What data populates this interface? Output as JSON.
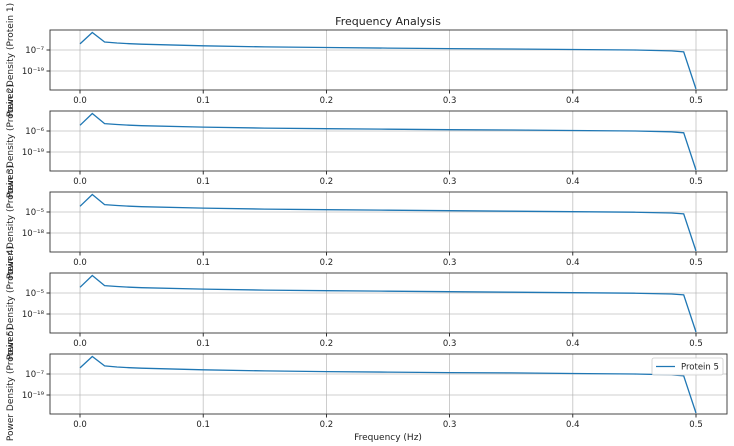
{
  "figure": {
    "title": "Frequency Analysis",
    "xlabel": "Frequency (Hz)"
  },
  "chart_data": {
    "type": "line",
    "title": "Frequency Analysis",
    "xlabel": "Frequency (Hz)",
    "x_ticks": [
      "0.0",
      "0.1",
      "0.2",
      "0.3",
      "0.4",
      "0.5"
    ],
    "xlim": [
      -0.025,
      0.525
    ],
    "grid": true,
    "yscale": "log",
    "legend": {
      "entries": [
        "Protein 5"
      ],
      "position": "upper right",
      "panel": 5
    },
    "line_color": "#1f77b4",
    "x": [
      0.0,
      0.01,
      0.02,
      0.03,
      0.04,
      0.05,
      0.1,
      0.15,
      0.2,
      0.25,
      0.3,
      0.35,
      0.4,
      0.45,
      0.48,
      0.49,
      0.5
    ],
    "panels": [
      {
        "ylabel": "Power Density (Protein 1)",
        "y_ticks": [
          "10⁻⁷",
          "10⁻¹⁹"
        ],
        "tick_exponents": [
          -7,
          -19
        ],
        "y_log_values": [
          -3.5,
          -1.5,
          -2.4,
          -3.0,
          -3.4,
          -3.7,
          -4.6,
          -5.2,
          -5.6,
          -5.9,
          -6.2,
          -6.4,
          -6.7,
          -7.0,
          -7.5,
          -8.1,
          -29
        ]
      },
      {
        "ylabel": "Power Density (Protein 2)",
        "y_ticks": [
          "10⁻⁶",
          "10⁻¹⁹"
        ],
        "tick_exponents": [
          -6,
          -19
        ],
        "y_log_values": [
          -2.5,
          -0.4,
          -1.4,
          -2.0,
          -2.4,
          -2.7,
          -3.6,
          -4.2,
          -4.6,
          -4.9,
          -5.2,
          -5.4,
          -5.7,
          -6.0,
          -6.5,
          -7.1,
          -31
        ]
      },
      {
        "ylabel": "Power Density (Protein 3)",
        "y_ticks": [
          "10⁻⁵",
          "10⁻¹⁸"
        ],
        "tick_exponents": [
          -5,
          -18
        ],
        "y_log_values": [
          -1.5,
          0.6,
          -0.4,
          -1.0,
          -1.4,
          -1.7,
          -2.6,
          -3.2,
          -3.6,
          -3.9,
          -4.2,
          -4.5,
          -4.8,
          -5.1,
          -5.6,
          -6.2,
          -30
        ]
      },
      {
        "ylabel": "Power Density (Protein 4)",
        "y_ticks": [
          "10⁻⁵",
          "10⁻¹⁸"
        ],
        "tick_exponents": [
          -5,
          -18
        ],
        "y_log_values": [
          -1.5,
          0.6,
          -0.4,
          -1.0,
          -1.4,
          -1.7,
          -2.6,
          -3.2,
          -3.6,
          -3.9,
          -4.2,
          -4.5,
          -4.8,
          -5.1,
          -5.6,
          -6.2,
          -30
        ]
      },
      {
        "ylabel": "Power Density (Protein 5)",
        "y_ticks": [
          "10⁻⁷",
          "10⁻¹⁹"
        ],
        "tick_exponents": [
          -7,
          -19
        ],
        "y_log_values": [
          -3.5,
          -1.5,
          -2.4,
          -3.0,
          -3.4,
          -3.7,
          -4.6,
          -5.2,
          -5.6,
          -5.9,
          -6.2,
          -6.4,
          -6.7,
          -7.0,
          -7.5,
          -8.1,
          -29
        ]
      }
    ]
  }
}
